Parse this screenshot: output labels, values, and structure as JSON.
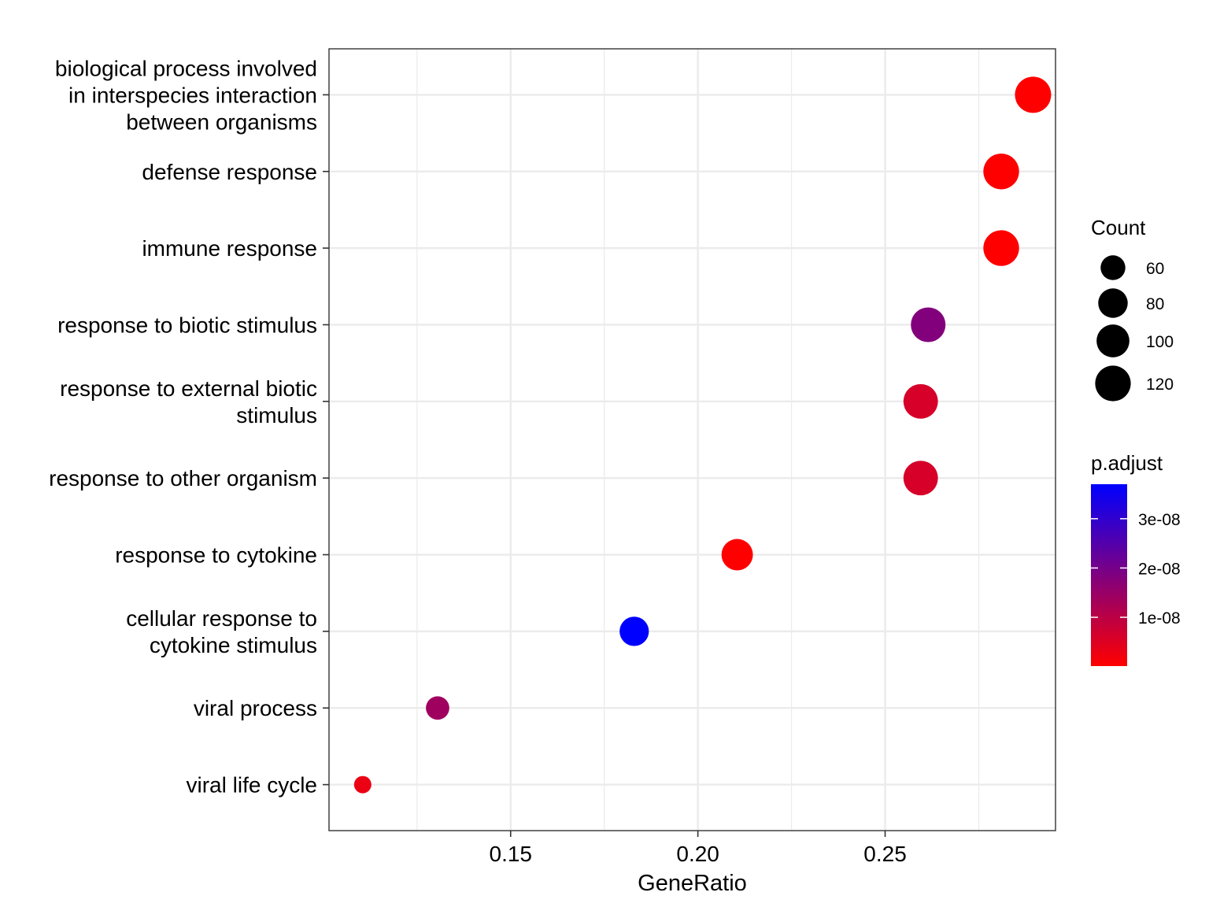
{
  "chart_data": {
    "type": "scatter",
    "xlabel": "GeneRatio",
    "x_ticks": [
      0.15,
      0.2,
      0.25
    ],
    "x_tick_labels": [
      "0.15",
      "0.20",
      "0.25"
    ],
    "xlim": [
      0.1015,
      0.2955
    ],
    "grid": true,
    "categories": [
      [
        "biological process involved",
        "in interspecies interaction",
        "between organisms"
      ],
      [
        "defense response"
      ],
      [
        "immune response"
      ],
      [
        "response to biotic stimulus"
      ],
      [
        "response to external biotic",
        "stimulus"
      ],
      [
        "response to other organism"
      ],
      [
        "response to cytokine"
      ],
      [
        "cellular response to",
        "cytokine stimulus"
      ],
      [
        "viral process"
      ],
      [
        "viral life cycle"
      ]
    ],
    "points": [
      {
        "gene_ratio": 0.2895,
        "count": 125,
        "p_adjust": 1e-10
      },
      {
        "gene_ratio": 0.281,
        "count": 121,
        "p_adjust": 1e-10
      },
      {
        "gene_ratio": 0.281,
        "count": 121,
        "p_adjust": 1e-10
      },
      {
        "gene_ratio": 0.2615,
        "count": 113,
        "p_adjust": 1.8e-08
      },
      {
        "gene_ratio": 0.2595,
        "count": 112,
        "p_adjust": 6e-09
      },
      {
        "gene_ratio": 0.2595,
        "count": 112,
        "p_adjust": 6e-09
      },
      {
        "gene_ratio": 0.2105,
        "count": 91,
        "p_adjust": 1e-10
      },
      {
        "gene_ratio": 0.183,
        "count": 79,
        "p_adjust": 3.7e-08
      },
      {
        "gene_ratio": 0.1305,
        "count": 56,
        "p_adjust": 1.4e-08
      },
      {
        "gene_ratio": 0.1105,
        "count": 48,
        "p_adjust": 3e-09
      }
    ],
    "legend_size": {
      "title": "Count",
      "breaks": [
        60,
        80,
        100,
        120
      ],
      "labels": [
        "60",
        "80",
        "100",
        "120"
      ]
    },
    "legend_color": {
      "title": "p.adjust",
      "range": [
        1e-10,
        3.7e-08
      ],
      "breaks": [
        1e-08,
        2e-08,
        3e-08
      ],
      "labels": [
        "1e-08",
        "2e-08",
        "3e-08"
      ],
      "low_color": "#ff0000",
      "high_color": "#0000ff"
    },
    "colors": {
      "grid": "#ebebeb",
      "panel_border": "#333333",
      "tick": "#333333"
    }
  }
}
